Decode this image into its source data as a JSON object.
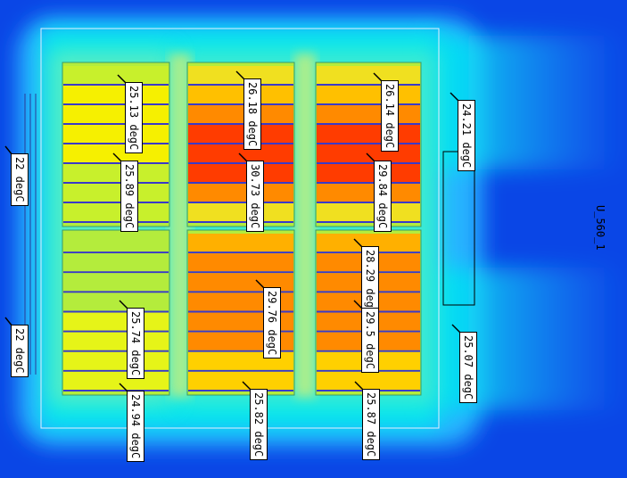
{
  "model_name": "U_560_1",
  "colors": {
    "background": "#0a46e6",
    "flow_low": "#28b4ff",
    "flow_mid": "#00e6f0",
    "flow_warm": "#78f0b4",
    "enclosure": "#e6f0ff",
    "green_tray": "#b4ec3c",
    "yellow_bar": "#f6f000",
    "orange_tray": "#ff8a00",
    "red_core": "#ff3c00",
    "plate_line": "#3a3ac8"
  },
  "temperature_labels": [
    {
      "id": "l1",
      "text": "25.13 degC"
    },
    {
      "id": "l2",
      "text": "25.89 degC"
    },
    {
      "id": "l3",
      "text": "26.18 degC"
    },
    {
      "id": "l4",
      "text": "30.73 degC"
    },
    {
      "id": "l5",
      "text": "26.14 degC"
    },
    {
      "id": "l6",
      "text": "29.84 degC"
    },
    {
      "id": "l7",
      "text": "24.21 degC"
    },
    {
      "id": "l8",
      "text": "22 degC"
    },
    {
      "id": "l9",
      "text": "28.29 degC"
    },
    {
      "id": "l10",
      "text": "29.76 degC"
    },
    {
      "id": "l11",
      "text": "25.74 degC"
    },
    {
      "id": "l12",
      "text": "29.5 degC"
    },
    {
      "id": "l13",
      "text": "22 degC"
    },
    {
      "id": "l14",
      "text": "25.07 degC"
    },
    {
      "id": "l15",
      "text": "24.94 degC"
    },
    {
      "id": "l16",
      "text": "25.82 degC"
    },
    {
      "id": "l17",
      "text": "25.87 degC"
    }
  ]
}
